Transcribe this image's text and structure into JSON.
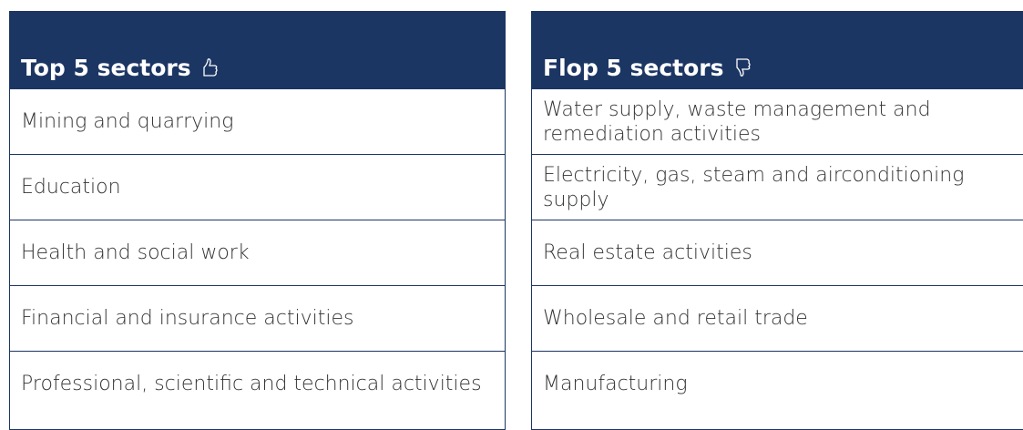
{
  "left": {
    "title": "Top 5 sectors",
    "rows": [
      "Mining and quarrying",
      "Education",
      "Health and social work",
      "Financial and insurance activities",
      "Professional, scientific and technical activities"
    ]
  },
  "right": {
    "title": "Flop 5 sectors",
    "rows": [
      "Water supply, waste management and remediation activities",
      "Electricity, gas, steam and airconditioning supply",
      "Real estate activities",
      "Wholesale and retail trade",
      "Manufacturing"
    ]
  }
}
